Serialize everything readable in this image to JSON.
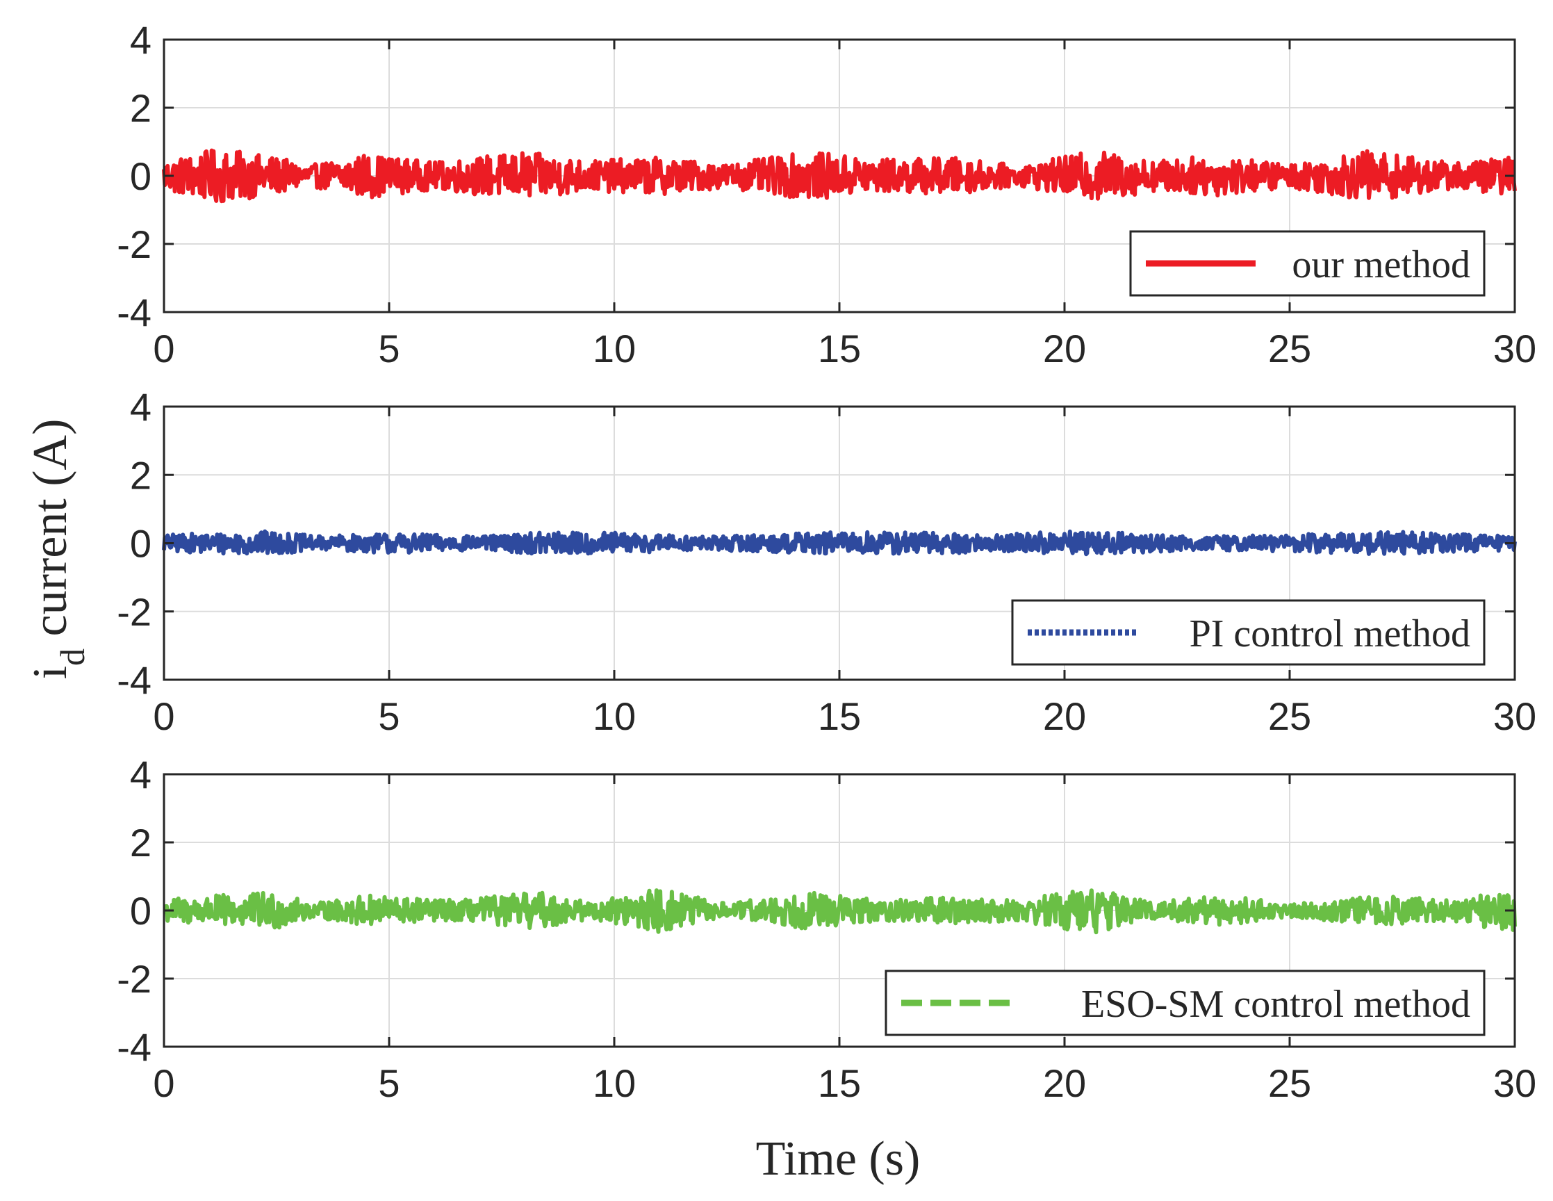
{
  "chart_data": {
    "type": "line",
    "ylabel_main": "i",
    "ylabel_sub": "d",
    "ylabel_rest": " current (A)",
    "xlabel": "Time (s)",
    "xlim": [
      0,
      30
    ],
    "ylim": [
      -4,
      4
    ],
    "xticks": [
      0,
      5,
      10,
      15,
      20,
      25,
      30
    ],
    "yticks": [
      4,
      2,
      0,
      -2,
      -4
    ],
    "grid": true,
    "panels": [
      {
        "series_name": "our method",
        "color": "#ec1c24",
        "line_style": "solid",
        "legend_position": "bottom-right",
        "mean": 0.0,
        "noise_amplitude": 0.55,
        "envelope": [
          [
            0,
            0.45
          ],
          [
            1.2,
            0.8
          ],
          [
            2.5,
            0.55
          ],
          [
            3.2,
            0.3
          ],
          [
            4.5,
            0.65
          ],
          [
            6,
            0.4
          ],
          [
            7.2,
            0.6
          ],
          [
            8,
            0.7
          ],
          [
            9.5,
            0.45
          ],
          [
            11,
            0.55
          ],
          [
            12.5,
            0.35
          ],
          [
            14.3,
            0.7
          ],
          [
            16,
            0.5
          ],
          [
            17.5,
            0.55
          ],
          [
            19,
            0.3
          ],
          [
            20.7,
            0.75
          ],
          [
            22,
            0.45
          ],
          [
            23.3,
            0.6
          ],
          [
            25,
            0.35
          ],
          [
            26.8,
            0.75
          ],
          [
            28.5,
            0.4
          ],
          [
            30,
            0.55
          ]
        ]
      },
      {
        "series_name": "PI control method",
        "color": "#2e4a9e",
        "line_style": "dotted",
        "legend_position": "bottom-right",
        "mean": 0.0,
        "noise_amplitude": 0.3,
        "envelope": [
          [
            0,
            0.25
          ],
          [
            2.3,
            0.35
          ],
          [
            3.5,
            0.2
          ],
          [
            5,
            0.3
          ],
          [
            7,
            0.2
          ],
          [
            8.7,
            0.35
          ],
          [
            10.3,
            0.3
          ],
          [
            12,
            0.2
          ],
          [
            14,
            0.3
          ],
          [
            16.5,
            0.35
          ],
          [
            18.5,
            0.25
          ],
          [
            19.8,
            0.35
          ],
          [
            21.5,
            0.3
          ],
          [
            23,
            0.2
          ],
          [
            25,
            0.25
          ],
          [
            27.5,
            0.35
          ],
          [
            30,
            0.2
          ]
        ]
      },
      {
        "series_name": "ESO-SM control method",
        "color": "#6abf45",
        "line_style": "dashed",
        "legend_position": "bottom-right",
        "mean": 0.0,
        "noise_amplitude": 0.5,
        "envelope": [
          [
            0,
            0.35
          ],
          [
            2.5,
            0.55
          ],
          [
            3.3,
            0.2
          ],
          [
            4.5,
            0.45
          ],
          [
            6.5,
            0.3
          ],
          [
            8.3,
            0.55
          ],
          [
            9.5,
            0.25
          ],
          [
            11,
            0.65
          ],
          [
            12.5,
            0.2
          ],
          [
            14.3,
            0.55
          ],
          [
            16,
            0.3
          ],
          [
            17.5,
            0.4
          ],
          [
            19,
            0.3
          ],
          [
            20.5,
            0.7
          ],
          [
            22,
            0.25
          ],
          [
            23.5,
            0.45
          ],
          [
            25,
            0.2
          ],
          [
            27,
            0.45
          ],
          [
            28.5,
            0.3
          ],
          [
            30,
            0.65
          ]
        ]
      }
    ]
  }
}
